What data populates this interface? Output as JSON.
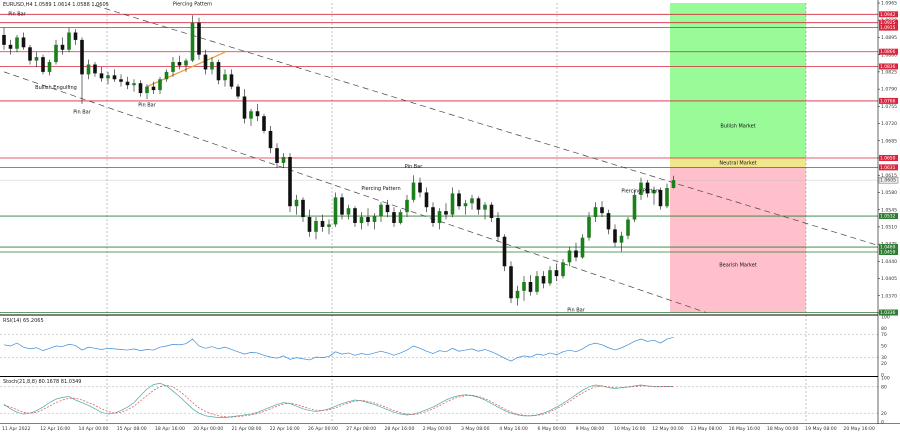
{
  "chart_data": {
    "type": "candlestick",
    "symbol_header": "EURUSD,H4  1.0589 1.0614 1.0588 1.0605",
    "price_axis": {
      "ylim": [
        1.0335,
        1.0965
      ],
      "ticks": [
        "1.0965",
        "1.0930",
        "1.0895",
        "1.0860",
        "1.0825",
        "1.0790",
        "1.0755",
        "1.0720",
        "1.0685",
        "1.0650",
        "1.0615",
        "1.0580",
        "1.0545",
        "1.0510",
        "1.0475",
        "1.0440",
        "1.0405",
        "1.0370",
        "1.0335"
      ],
      "current_price": "1.0605",
      "line_levels": [
        {
          "price": "1.0942",
          "color": "#d7263d"
        },
        {
          "price": "1.0925",
          "color": "#d7263d"
        },
        {
          "price": "1.0915",
          "color": "#d7263d"
        },
        {
          "price": "1.0866",
          "color": "#d7263d"
        },
        {
          "price": "1.0836",
          "color": "#d7263d"
        },
        {
          "price": "1.0766",
          "color": "#d7263d"
        },
        {
          "price": "1.0650",
          "color": "#d7263d"
        },
        {
          "price": "1.0631",
          "color": "#d7263d"
        },
        {
          "price": "1.0532",
          "color": "#2e7d32"
        },
        {
          "price": "1.0469",
          "color": "#2e7d32"
        },
        {
          "price": "1.0459",
          "color": "#2e7d32"
        },
        {
          "price": "1.0336",
          "color": "#2e7d32"
        }
      ]
    },
    "x_axis": {
      "labels": [
        "11 Apr 2022",
        "12 Apr 16:00",
        "14 Apr 00:00",
        "15 Apr 08:00",
        "18 Apr 16:00",
        "20 Apr 00:00",
        "21 Apr 08:00",
        "22 Apr 16:00",
        "26 Apr 00:00",
        "27 Apr 08:00",
        "28 Apr 16:00",
        "2 May 00:00",
        "3 May 08:00",
        "4 May 16:00",
        "6 May 00:00",
        "9 May 08:00",
        "10 May 16:00",
        "12 May 00:00",
        "13 May 08:00",
        "16 May 16:00",
        "18 May 00:00",
        "19 May 08:00",
        "20 May 16:00"
      ]
    },
    "candles": [
      [
        1.09,
        1.0915,
        1.087,
        1.088
      ],
      [
        1.088,
        1.089,
        1.086,
        1.0872
      ],
      [
        1.0872,
        1.09,
        1.0865,
        1.0895
      ],
      [
        1.0895,
        1.0905,
        1.087,
        1.0875
      ],
      [
        1.0875,
        1.088,
        1.084,
        1.0848
      ],
      [
        1.0848,
        1.0865,
        1.0835,
        1.0855
      ],
      [
        1.0855,
        1.086,
        1.082,
        1.0825
      ],
      [
        1.0825,
        1.085,
        1.0818,
        1.0845
      ],
      [
        1.0845,
        1.089,
        1.084,
        1.088
      ],
      [
        1.088,
        1.0895,
        1.086,
        1.087
      ],
      [
        1.087,
        1.0915,
        1.0865,
        1.0905
      ],
      [
        1.0905,
        1.0912,
        1.088,
        1.089
      ],
      [
        1.089,
        1.0895,
        1.076,
        1.082
      ],
      [
        1.082,
        1.085,
        1.081,
        1.084
      ],
      [
        1.084,
        1.0845,
        1.0815,
        1.0822
      ],
      [
        1.0822,
        1.0835,
        1.0805,
        1.0812
      ],
      [
        1.0812,
        1.0825,
        1.08,
        1.0818
      ],
      [
        1.0818,
        1.083,
        1.0805,
        1.081
      ],
      [
        1.081,
        1.082,
        1.0795,
        1.0805
      ],
      [
        1.0805,
        1.0815,
        1.079,
        1.0798
      ],
      [
        1.0798,
        1.081,
        1.0785,
        1.0802
      ],
      [
        1.0802,
        1.0808,
        1.0775,
        1.0782
      ],
      [
        1.0782,
        1.08,
        1.077,
        1.0795
      ],
      [
        1.0795,
        1.0805,
        1.078,
        1.0788
      ],
      [
        1.0788,
        1.0815,
        1.078,
        1.081
      ],
      [
        1.081,
        1.083,
        1.0805,
        1.0825
      ],
      [
        1.0825,
        1.0855,
        1.0815,
        1.0845
      ],
      [
        1.0845,
        1.0858,
        1.083,
        1.0838
      ],
      [
        1.0838,
        1.0852,
        1.0825,
        1.0848
      ],
      [
        1.0848,
        1.094,
        1.0845,
        1.0925
      ],
      [
        1.0925,
        1.0935,
        1.085,
        1.086
      ],
      [
        1.086,
        1.087,
        1.082,
        1.083
      ],
      [
        1.083,
        1.0855,
        1.082,
        1.0845
      ],
      [
        1.0845,
        1.085,
        1.08,
        1.0808
      ],
      [
        1.0808,
        1.083,
        1.0795,
        1.082
      ],
      [
        1.082,
        1.083,
        1.079,
        1.0795
      ],
      [
        1.0795,
        1.08,
        1.077,
        1.0775
      ],
      [
        1.0775,
        1.079,
        1.072,
        1.073
      ],
      [
        1.073,
        1.075,
        1.0715,
        1.0745
      ],
      [
        1.0745,
        1.076,
        1.0725,
        1.0735
      ],
      [
        1.0735,
        1.074,
        1.07,
        1.0705
      ],
      [
        1.0705,
        1.0715,
        1.066,
        1.067
      ],
      [
        1.067,
        1.068,
        1.063,
        1.064
      ],
      [
        1.064,
        1.066,
        1.063,
        1.0652
      ],
      [
        1.0652,
        1.066,
        1.054,
        1.0552
      ],
      [
        1.0552,
        1.0575,
        1.0535,
        1.0565
      ],
      [
        1.0565,
        1.057,
        1.052,
        1.053
      ],
      [
        1.053,
        1.0545,
        1.049,
        1.05
      ],
      [
        1.05,
        1.053,
        1.0485,
        1.0522
      ],
      [
        1.0522,
        1.0535,
        1.05,
        1.051
      ],
      [
        1.051,
        1.0525,
        1.0495,
        1.0515
      ],
      [
        1.0515,
        1.058,
        1.051,
        1.057
      ],
      [
        1.057,
        1.0578,
        1.0525,
        1.0535
      ],
      [
        1.0535,
        1.0555,
        1.0525,
        1.0548
      ],
      [
        1.0548,
        1.0552,
        1.051,
        1.0518
      ],
      [
        1.0518,
        1.054,
        1.0505,
        1.053
      ],
      [
        1.053,
        1.0548,
        1.0512,
        1.052
      ],
      [
        1.052,
        1.0538,
        1.0505,
        1.0532
      ],
      [
        1.0532,
        1.056,
        1.052,
        1.0555
      ],
      [
        1.0555,
        1.0565,
        1.053,
        1.054
      ],
      [
        1.054,
        1.055,
        1.051,
        1.0518
      ],
      [
        1.0518,
        1.0545,
        1.0515,
        1.054
      ],
      [
        1.054,
        1.0575,
        1.053,
        1.0565
      ],
      [
        1.0565,
        1.0615,
        1.056,
        1.06
      ],
      [
        1.06,
        1.061,
        1.057,
        1.058
      ],
      [
        1.058,
        1.059,
        1.054,
        1.055
      ],
      [
        1.055,
        1.056,
        1.051,
        1.0518
      ],
      [
        1.0518,
        1.0548,
        1.0505,
        1.0542
      ],
      [
        1.0542,
        1.0558,
        1.0525,
        1.0535
      ],
      [
        1.0535,
        1.059,
        1.053,
        1.0578
      ],
      [
        1.0578,
        1.0585,
        1.0545,
        1.0552
      ],
      [
        1.0552,
        1.0565,
        1.0535,
        1.0558
      ],
      [
        1.0558,
        1.0575,
        1.0545,
        1.0568
      ],
      [
        1.0568,
        1.0572,
        1.0535,
        1.0545
      ],
      [
        1.0545,
        1.056,
        1.0525,
        1.0555
      ],
      [
        1.0555,
        1.056,
        1.052,
        1.0528
      ],
      [
        1.0528,
        1.054,
        1.048,
        1.049
      ],
      [
        1.049,
        1.0495,
        1.042,
        1.043
      ],
      [
        1.043,
        1.044,
        1.0355,
        1.0365
      ],
      [
        1.0365,
        1.039,
        1.035,
        1.038
      ],
      [
        1.038,
        1.041,
        1.036,
        1.0398
      ],
      [
        1.0398,
        1.0412,
        1.037,
        1.0378
      ],
      [
        1.0378,
        1.042,
        1.0372,
        1.041
      ],
      [
        1.041,
        1.042,
        1.0385,
        1.0395
      ],
      [
        1.0395,
        1.043,
        1.039,
        1.0422
      ],
      [
        1.0422,
        1.0435,
        1.04,
        1.041
      ],
      [
        1.041,
        1.0445,
        1.0405,
        1.0438
      ],
      [
        1.0438,
        1.047,
        1.043,
        1.0462
      ],
      [
        1.0462,
        1.0478,
        1.044,
        1.0448
      ],
      [
        1.0448,
        1.0495,
        1.0445,
        1.0488
      ],
      [
        1.0488,
        1.054,
        1.0482,
        1.053
      ],
      [
        1.053,
        1.056,
        1.052,
        1.055
      ],
      [
        1.055,
        1.0562,
        1.053,
        1.0538
      ],
      [
        1.0538,
        1.0545,
        1.0495,
        1.0505
      ],
      [
        1.0505,
        1.0515,
        1.047,
        1.0478
      ],
      [
        1.0478,
        1.05,
        1.046,
        1.0492
      ],
      [
        1.0492,
        1.053,
        1.0485,
        1.0525
      ],
      [
        1.0525,
        1.0585,
        1.052,
        1.0575
      ],
      [
        1.0575,
        1.061,
        1.0565,
        1.06
      ],
      [
        1.06,
        1.0605,
        1.057,
        1.0578
      ],
      [
        1.0578,
        1.0592,
        1.0555,
        1.0585
      ],
      [
        1.0585,
        1.059,
        1.0545,
        1.0552
      ],
      [
        1.0552,
        1.0598,
        1.0548,
        1.0589
      ],
      [
        1.0589,
        1.0614,
        1.0588,
        1.0605
      ]
    ],
    "zones": [
      {
        "label": "Bullish Market",
        "from": 1.065,
        "to": 1.0965,
        "color": "#98fb98"
      },
      {
        "label": "Neutral Market",
        "from": 1.0631,
        "to": 1.065,
        "color": "#f0e68c"
      },
      {
        "label": "Bearish Market",
        "from": 1.0336,
        "to": 1.0631,
        "color": "#ffc0cb"
      }
    ],
    "annotations": [
      {
        "text": "Pin Bar",
        "candle": 2,
        "price": 1.094
      },
      {
        "text": "Piercing Pattern",
        "candle": 29,
        "price": 1.096
      },
      {
        "text": "Bullish Engulfing",
        "candle": 8,
        "price": 1.079
      },
      {
        "text": "Pin Bar",
        "candle": 12,
        "price": 1.074
      },
      {
        "text": "Pin Bar",
        "candle": 22,
        "price": 1.0755
      },
      {
        "text": "Pin Bar",
        "candle": 63,
        "price": 1.063
      },
      {
        "text": "Piercing Pattern",
        "candle": 58,
        "price": 1.0585
      },
      {
        "text": "Piercing Pattern",
        "candle": 98,
        "price": 1.058
      },
      {
        "text": "Pin Bar",
        "candle": 88,
        "price": 1.0338
      }
    ],
    "trendlines": [
      {
        "from": [
          14,
          1.096
        ],
        "to": [
          140,
          1.045
        ],
        "style": "dashed"
      },
      {
        "from": [
          0,
          1.0825
        ],
        "to": [
          108,
          1.0336
        ],
        "style": "dashed"
      },
      {
        "from": [
          22,
          1.0795
        ],
        "to": [
          34,
          1.0865
        ],
        "style": "solid-orange"
      }
    ],
    "rsi": {
      "label": "RSI(14) 65.2065",
      "ylim": [
        0,
        100
      ],
      "ticks": [
        "100",
        "80",
        "70",
        "50",
        "30",
        "20",
        "0"
      ],
      "values": [
        52,
        50,
        55,
        48,
        45,
        47,
        42,
        46,
        50,
        49,
        53,
        51,
        43,
        48,
        46,
        44,
        46,
        45,
        44,
        43,
        45,
        42,
        44,
        43,
        48,
        50,
        53,
        52,
        54,
        62,
        50,
        46,
        49,
        45,
        48,
        44,
        40,
        36,
        39,
        38,
        34,
        31,
        29,
        33,
        27,
        30,
        28,
        26,
        31,
        30,
        32,
        40,
        36,
        38,
        34,
        37,
        35,
        38,
        41,
        38,
        34,
        38,
        43,
        50,
        46,
        41,
        37,
        42,
        40,
        46,
        41,
        43,
        45,
        41,
        44,
        40,
        35,
        29,
        24,
        30,
        33,
        31,
        36,
        34,
        38,
        35,
        40,
        43,
        40,
        45,
        52,
        55,
        52,
        47,
        43,
        47,
        52,
        58,
        62,
        58,
        60,
        55,
        62,
        65
      ]
    },
    "stoch": {
      "label": "Stoch(21,8,8) 80.1678 81.0349",
      "ylim": [
        0,
        100
      ],
      "ticks": [
        "100",
        "80",
        "20",
        "0"
      ],
      "main": [
        40,
        30,
        22,
        18,
        20,
        26,
        34,
        44,
        52,
        56,
        58,
        50,
        44,
        38,
        30,
        22,
        18,
        20,
        26,
        34,
        44,
        60,
        75,
        85,
        88,
        82,
        70,
        58,
        44,
        30,
        20,
        14,
        12,
        10,
        10,
        12,
        14,
        16,
        18,
        22,
        28,
        34,
        40,
        44,
        42,
        36,
        30,
        26,
        24,
        26,
        30,
        36,
        42,
        46,
        50,
        48,
        44,
        40,
        34,
        28,
        22,
        18,
        16,
        18,
        22,
        28,
        34,
        42,
        50,
        56,
        60,
        62,
        60,
        56,
        50,
        42,
        34,
        26,
        20,
        16,
        14,
        14,
        16,
        20,
        26,
        34,
        42,
        52,
        62,
        72,
        80,
        84,
        82,
        78,
        76,
        78,
        80,
        82,
        84,
        82,
        80,
        80,
        81,
        80
      ],
      "signal": [
        38,
        34,
        28,
        22,
        20,
        22,
        28,
        36,
        44,
        50,
        54,
        54,
        50,
        44,
        38,
        30,
        24,
        20,
        22,
        28,
        36,
        48,
        60,
        72,
        80,
        84,
        80,
        70,
        58,
        44,
        32,
        24,
        18,
        14,
        12,
        11,
        12,
        14,
        16,
        19,
        24,
        30,
        36,
        41,
        43,
        40,
        35,
        30,
        27,
        26,
        28,
        32,
        38,
        43,
        47,
        49,
        47,
        43,
        38,
        32,
        26,
        21,
        18,
        17,
        19,
        24,
        30,
        37,
        45,
        52,
        57,
        60,
        61,
        58,
        53,
        46,
        38,
        30,
        23,
        18,
        15,
        14,
        15,
        18,
        23,
        30,
        38,
        47,
        57,
        66,
        74,
        80,
        82,
        80,
        78,
        78,
        79,
        81,
        82,
        82,
        81,
        81,
        81,
        81
      ]
    }
  }
}
